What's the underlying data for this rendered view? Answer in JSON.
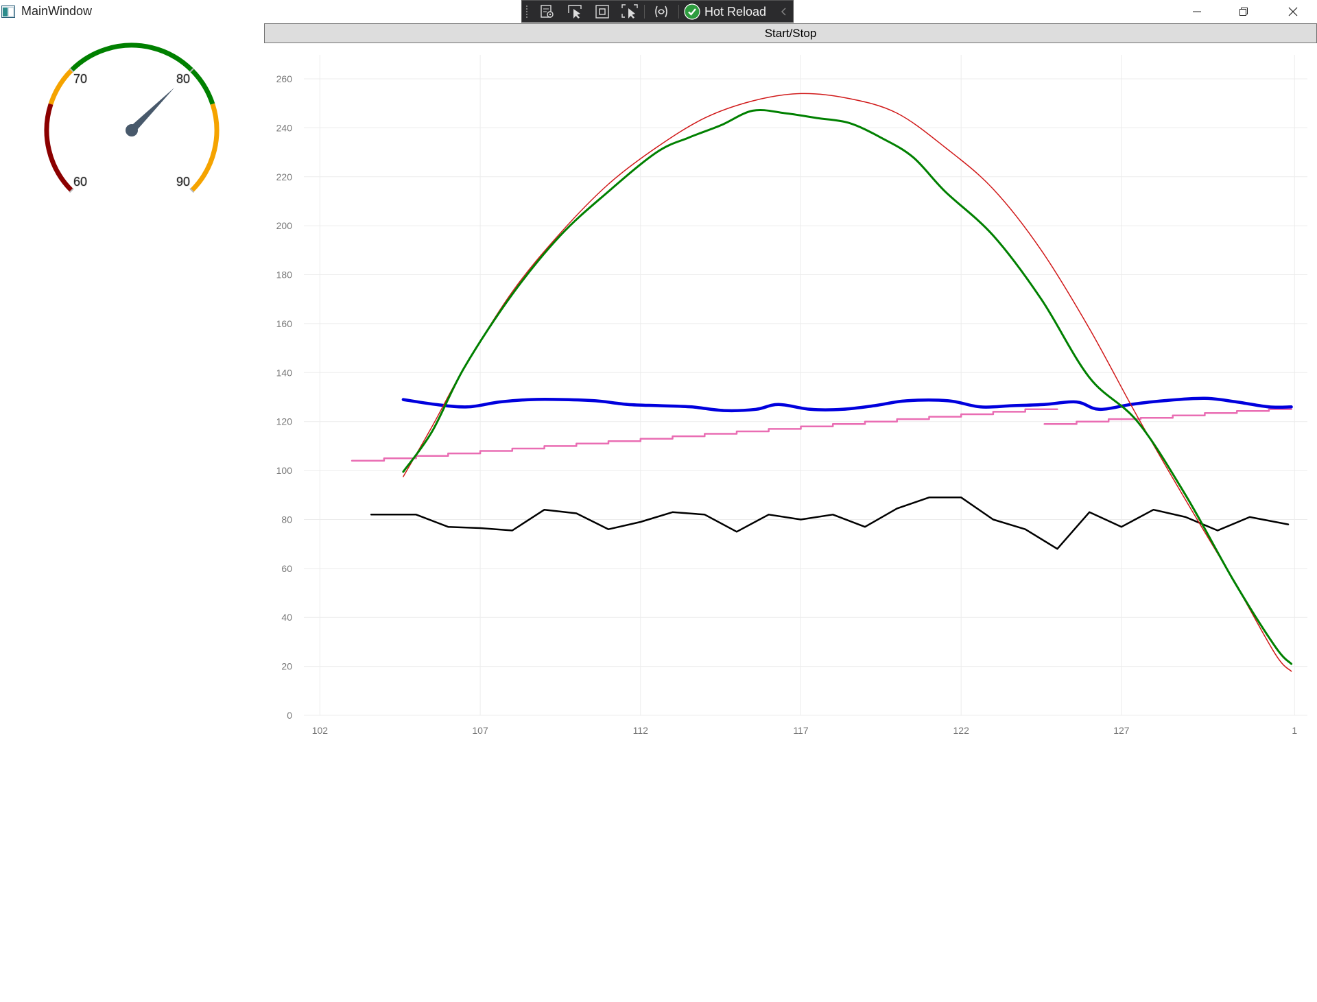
{
  "window": {
    "title": "MainWindow",
    "icon": "wpf-window-icon",
    "controls": [
      "minimize-icon",
      "maximize-icon",
      "close-icon"
    ]
  },
  "dev_toolbar": {
    "tools": [
      "select-element-icon",
      "select-pointer-icon",
      "display-layout-adorners-icon",
      "track-focused-element-icon",
      "binding-failures-icon"
    ],
    "hot_reload": {
      "label": "Hot Reload",
      "status_icon": "checkmark-circle-icon",
      "status_color": "#2e9c3f"
    },
    "collapse_icon": "chevron-left-icon"
  },
  "toolbar": {
    "start_stop_label": "Start/Stop"
  },
  "gauge": {
    "value": 80,
    "tick_labels": [
      "60",
      "70",
      "80",
      "90"
    ],
    "needle_color": "#48596b",
    "bands": [
      {
        "range": [
          60,
          67
        ],
        "color": "#8b0000"
      },
      {
        "range": [
          67,
          70
        ],
        "color": "#f5a300"
      },
      {
        "range": [
          70,
          83
        ],
        "color": "#008000"
      },
      {
        "range": [
          83,
          90
        ],
        "color": "#f5a300"
      }
    ]
  },
  "chart_data": {
    "type": "line",
    "xlim": [
      101.5,
      132.8
    ],
    "ylim": [
      0,
      260
    ],
    "grid": true,
    "x_tick_labels": [
      "102",
      "107",
      "112",
      "117",
      "122",
      "127",
      "1"
    ],
    "y_tick_labels": [
      "0",
      "20",
      "40",
      "60",
      "80",
      "100",
      "120",
      "140",
      "160",
      "180",
      "200",
      "220",
      "240",
      "260"
    ],
    "series": [
      {
        "color": "#d01818",
        "width": 1.5,
        "curve": "smooth",
        "points": [
          [
            104.6,
            97.5
          ],
          [
            105.5,
            118
          ],
          [
            106.5,
            142
          ],
          [
            108,
            173
          ],
          [
            109.5,
            197
          ],
          [
            111,
            217
          ],
          [
            112.5,
            232
          ],
          [
            114,
            244
          ],
          [
            115.5,
            251
          ],
          [
            117,
            254
          ],
          [
            118.5,
            252
          ],
          [
            120,
            246
          ],
          [
            121.5,
            232
          ],
          [
            123,
            215
          ],
          [
            124.5,
            190
          ],
          [
            126,
            158
          ],
          [
            127.5,
            122
          ],
          [
            129,
            88
          ],
          [
            130.5,
            55
          ],
          [
            131.8,
            25
          ],
          [
            132.3,
            18
          ]
        ]
      },
      {
        "color": "#008000",
        "width": 3,
        "curve": "smooth",
        "points": [
          [
            104.6,
            99.5
          ],
          [
            105.5,
            116
          ],
          [
            106.5,
            142
          ],
          [
            108,
            172
          ],
          [
            109.5,
            196
          ],
          [
            111,
            214
          ],
          [
            112.5,
            230
          ],
          [
            113.5,
            236
          ],
          [
            114.5,
            241
          ],
          [
            115.5,
            247
          ],
          [
            116.5,
            246
          ],
          [
            117.5,
            244
          ],
          [
            118.5,
            242
          ],
          [
            119.5,
            236
          ],
          [
            120.5,
            228
          ],
          [
            121.5,
            214
          ],
          [
            123,
            196
          ],
          [
            124.5,
            170
          ],
          [
            126,
            138
          ],
          [
            127.5,
            120
          ],
          [
            129,
            90
          ],
          [
            130.5,
            55
          ],
          [
            131.8,
            28
          ],
          [
            132.3,
            21
          ]
        ]
      },
      {
        "color": "#0000dd",
        "width": 4.5,
        "curve": "smooth",
        "points": [
          [
            104.6,
            129
          ],
          [
            105.6,
            127
          ],
          [
            106.6,
            126
          ],
          [
            107.6,
            128
          ],
          [
            108.6,
            129
          ],
          [
            109.6,
            129
          ],
          [
            110.6,
            128.5
          ],
          [
            111.6,
            127
          ],
          [
            112.6,
            126.5
          ],
          [
            113.6,
            126
          ],
          [
            114.6,
            124.5
          ],
          [
            115.6,
            125
          ],
          [
            116.3,
            127
          ],
          [
            117.3,
            125
          ],
          [
            118.3,
            125
          ],
          [
            119.3,
            126.5
          ],
          [
            120.3,
            128.5
          ],
          [
            121.6,
            128.5
          ],
          [
            122.6,
            126
          ],
          [
            123.6,
            126.5
          ],
          [
            124.6,
            127
          ],
          [
            125.6,
            128
          ],
          [
            126.3,
            125
          ],
          [
            127.3,
            127
          ],
          [
            128.3,
            128.5
          ],
          [
            129.6,
            129.5
          ],
          [
            130.6,
            128
          ],
          [
            131.6,
            126
          ],
          [
            132.3,
            126
          ]
        ]
      },
      {
        "color": "#e96db3",
        "width": 2.5,
        "curve": "step",
        "points": [
          [
            103,
            104
          ],
          [
            104,
            105
          ],
          [
            105,
            106
          ],
          [
            106,
            107
          ],
          [
            107,
            108
          ],
          [
            108,
            109
          ],
          [
            109,
            110
          ],
          [
            110,
            111
          ],
          [
            111,
            112
          ],
          [
            112,
            113
          ],
          [
            113,
            114
          ],
          [
            114,
            115
          ],
          [
            115,
            116
          ],
          [
            116,
            117
          ],
          [
            117,
            118
          ],
          [
            118,
            119
          ],
          [
            119,
            120
          ],
          [
            120,
            121
          ],
          [
            121,
            122
          ],
          [
            122,
            123
          ],
          [
            123,
            124
          ],
          [
            124,
            125
          ],
          [
            125,
            125
          ]
        ]
      },
      {
        "color": "#e96db3",
        "width": 2.5,
        "curve": "step",
        "points": [
          [
            124.6,
            119
          ],
          [
            125.6,
            120
          ],
          [
            126.6,
            121
          ],
          [
            127.6,
            121.5
          ],
          [
            128.6,
            122.5
          ],
          [
            129.6,
            123.5
          ],
          [
            130.6,
            124.3
          ],
          [
            131.6,
            125
          ],
          [
            132.3,
            125
          ]
        ]
      },
      {
        "color": "#000000",
        "width": 2.5,
        "curve": "linear",
        "points": [
          [
            103.6,
            82
          ],
          [
            105,
            82
          ],
          [
            106,
            77
          ],
          [
            107,
            76.5
          ],
          [
            108,
            75.5
          ],
          [
            109,
            84
          ],
          [
            110,
            82.5
          ],
          [
            111,
            76
          ],
          [
            112,
            79
          ],
          [
            113,
            83
          ],
          [
            114,
            82
          ],
          [
            115,
            75
          ],
          [
            116,
            82
          ],
          [
            117,
            80
          ],
          [
            118,
            82
          ],
          [
            119,
            77
          ],
          [
            120,
            84.5
          ],
          [
            121,
            89
          ],
          [
            122,
            89
          ],
          [
            123,
            80
          ],
          [
            124,
            76
          ],
          [
            125,
            68
          ],
          [
            126,
            83
          ],
          [
            127,
            77
          ],
          [
            128,
            84
          ],
          [
            129,
            81
          ],
          [
            130,
            75.5
          ],
          [
            131,
            81
          ],
          [
            132.2,
            78
          ]
        ]
      }
    ]
  }
}
